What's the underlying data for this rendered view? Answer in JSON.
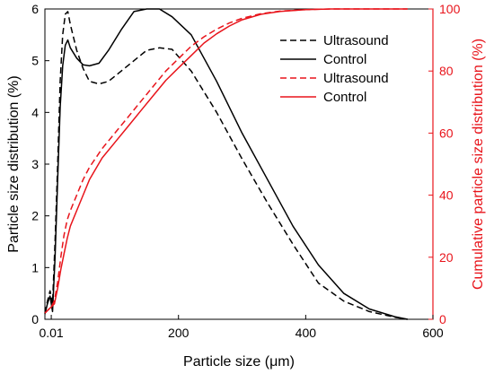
{
  "colors": {
    "left_axis": "#000000",
    "right_axis": "#e8141b"
  },
  "chart_data": {
    "type": "line",
    "xlabel": "Particle size (μm)",
    "ylabel_left": "Particle size distribution (%)",
    "ylabel_right": "Cumulative particle size distribution (%)",
    "x_ticks": [
      {
        "value": 0,
        "label": "0.01"
      },
      {
        "value": 200,
        "label": "200"
      },
      {
        "value": 400,
        "label": "400"
      },
      {
        "value": 600,
        "label": "600"
      }
    ],
    "xlim": [
      -10,
      600
    ],
    "ylim_left": [
      0,
      6
    ],
    "ylim_right": [
      0,
      100
    ],
    "y_ticks_left": [
      "0",
      "1",
      "2",
      "3",
      "4",
      "5",
      "6"
    ],
    "y_ticks_right": [
      "0",
      "20",
      "40",
      "60",
      "80",
      "100"
    ],
    "legend": {
      "position": "top-right",
      "entries": [
        {
          "label": "Ultrasound",
          "color": "#000000",
          "dash": true
        },
        {
          "label": "Control",
          "color": "#000000",
          "dash": false
        },
        {
          "label": "Ultrasound",
          "color": "#e8141b",
          "dash": true
        },
        {
          "label": "Control",
          "color": "#e8141b",
          "dash": false
        }
      ]
    },
    "series": [
      {
        "axis": "left",
        "color": "#000000",
        "dash": true,
        "x": [
          -10,
          -6,
          -2,
          2,
          6,
          10,
          14,
          18,
          22,
          26,
          30,
          40,
          50,
          60,
          75,
          90,
          110,
          130,
          150,
          170,
          190,
          220,
          260,
          300,
          340,
          380,
          420,
          460,
          500,
          540,
          560
        ],
        "y": [
          0.12,
          0.35,
          0.55,
          0.3,
          1.5,
          3.0,
          4.6,
          5.5,
          5.9,
          5.95,
          5.7,
          5.2,
          4.85,
          4.6,
          4.55,
          4.6,
          4.8,
          5.0,
          5.2,
          5.25,
          5.22,
          4.8,
          4.0,
          3.1,
          2.25,
          1.45,
          0.7,
          0.35,
          0.15,
          0.04,
          0
        ]
      },
      {
        "axis": "left",
        "color": "#000000",
        "dash": false,
        "x": [
          -10,
          -6,
          -2,
          2,
          6,
          10,
          14,
          18,
          22,
          26,
          30,
          40,
          50,
          60,
          75,
          90,
          110,
          130,
          150,
          170,
          190,
          220,
          260,
          300,
          340,
          380,
          420,
          460,
          500,
          540,
          560
        ],
        "y": [
          0.1,
          0.3,
          0.45,
          0.15,
          1.2,
          2.7,
          4.1,
          4.9,
          5.3,
          5.4,
          5.25,
          5.05,
          4.92,
          4.9,
          4.95,
          5.2,
          5.6,
          5.95,
          6.0,
          6.0,
          5.85,
          5.5,
          4.6,
          3.6,
          2.7,
          1.8,
          1.05,
          0.5,
          0.2,
          0.05,
          0
        ]
      },
      {
        "axis": "right",
        "color": "#e8141b",
        "dash": true,
        "x": [
          -10,
          -5,
          0,
          5,
          10,
          15,
          20,
          25,
          30,
          40,
          50,
          60,
          80,
          100,
          120,
          140,
          160,
          180,
          200,
          220,
          240,
          260,
          280,
          300,
          330,
          360,
          400,
          440,
          480,
          520,
          560
        ],
        "y": [
          2,
          3,
          4,
          6,
          12,
          20,
          27,
          32,
          35,
          40,
          45,
          49,
          55,
          60,
          65,
          70,
          75,
          80,
          84,
          88,
          91,
          93.5,
          95.5,
          97,
          98.5,
          99.3,
          99.8,
          100,
          100,
          100,
          100
        ]
      },
      {
        "axis": "right",
        "color": "#e8141b",
        "dash": false,
        "x": [
          -10,
          -5,
          0,
          5,
          10,
          15,
          20,
          25,
          30,
          40,
          50,
          60,
          80,
          100,
          120,
          140,
          160,
          180,
          200,
          220,
          240,
          260,
          280,
          300,
          330,
          360,
          400,
          440,
          480,
          520,
          560
        ],
        "y": [
          2,
          3,
          4,
          5,
          10,
          16,
          21,
          26,
          30,
          35,
          40,
          45,
          52,
          57,
          62,
          67,
          72,
          77,
          81,
          85,
          89,
          92,
          94.5,
          96.5,
          98.3,
          99.2,
          99.8,
          100,
          100,
          100,
          100
        ]
      }
    ]
  }
}
